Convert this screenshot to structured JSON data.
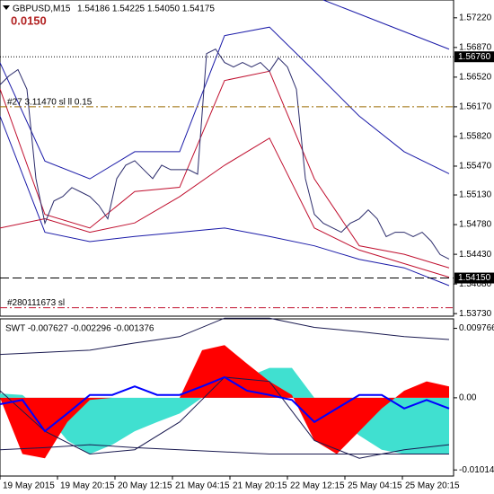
{
  "chart_data": [
    {
      "type": "line",
      "title": "GBPUSD,M15",
      "subtitle": "1.54186 1.54225 1.54050 1.54175",
      "annotation": "0.0150",
      "xlim": [
        0,
        505
      ],
      "xticks": [
        {
          "value": 0,
          "label": "19 May 2015"
        },
        {
          "value": 64,
          "label": "19 May 20:15"
        },
        {
          "value": 128,
          "label": "20 May 12:15"
        },
        {
          "value": 192,
          "label": "21 May 04:15"
        },
        {
          "value": 256,
          "label": "21 May 20:15"
        },
        {
          "value": 320,
          "label": "22 May 12:15"
        },
        {
          "value": 384,
          "label": "25 May 04:15"
        },
        {
          "value": 448,
          "label": "25 May 20:15"
        }
      ],
      "ylim": [
        1.537,
        1.5743
      ],
      "yticks": [
        {
          "value": 1.5722,
          "label": "1.57220"
        },
        {
          "value": 1.5687,
          "label": "1.56870"
        },
        {
          "value": 1.5652,
          "label": "1.56520"
        },
        {
          "value": 1.5617,
          "label": "1.56170"
        },
        {
          "value": 1.5582,
          "label": "1.55820"
        },
        {
          "value": 1.5547,
          "label": "1.55470"
        },
        {
          "value": 1.5513,
          "label": "1.55130"
        },
        {
          "value": 1.5478,
          "label": "1.54780"
        },
        {
          "value": 1.5443,
          "label": "1.54430"
        },
        {
          "value": 1.5408,
          "label": "1.54080"
        },
        {
          "value": 1.5373,
          "label": "1.53730"
        }
      ],
      "levels": [
        {
          "value": 1.5676,
          "label": "1.56760",
          "color": "#000000",
          "style": "dot"
        },
        {
          "value": 1.5415,
          "label": "1.54150",
          "color": "#000000",
          "style": "dash"
        },
        {
          "value": 1.5617,
          "text": "#27 3.11470 sl ll 0.15",
          "color": "#9a6a00",
          "style": "dashdot"
        },
        {
          "value": 1.538,
          "text": "#280111673 sl",
          "color": "#c0102f",
          "style": "dashdot"
        }
      ],
      "series": [
        {
          "color": "#1a1aa8",
          "x": [
            360,
            430,
            500
          ],
          "values": [
            1.5743,
            1.5714,
            1.5685
          ]
        },
        {
          "color": "#1a1aa8",
          "x": [
            0,
            50,
            100,
            150,
            200,
            250,
            300,
            350,
            400,
            450,
            500
          ],
          "values": [
            1.5669,
            1.5553,
            1.5532,
            1.5564,
            1.5564,
            1.5701,
            1.5711,
            1.5659,
            1.5606,
            1.5564,
            1.5538
          ]
        },
        {
          "color": "#1a1aa8",
          "x": [
            0,
            50,
            100,
            150,
            200,
            250,
            300,
            350,
            400,
            450,
            500
          ],
          "values": [
            1.5606,
            1.5469,
            1.5458,
            1.5464,
            1.5469,
            1.5474,
            1.5464,
            1.5453,
            1.5437,
            1.5427,
            1.5406
          ]
        },
        {
          "color": "#c0102f",
          "x": [
            0,
            50,
            100,
            150,
            200,
            250,
            300,
            350,
            400,
            450,
            500
          ],
          "values": [
            1.5638,
            1.549,
            1.5474,
            1.5517,
            1.5522,
            1.5648,
            1.5659,
            1.5532,
            1.5453,
            1.5443,
            1.5427
          ]
        },
        {
          "color": "#c0102f",
          "x": [
            0,
            50,
            100,
            150,
            200,
            250,
            300,
            350,
            400,
            450,
            500
          ],
          "values": [
            1.5474,
            1.5485,
            1.5469,
            1.548,
            1.5511,
            1.5548,
            1.558,
            1.5474,
            1.5448,
            1.5432,
            1.5416
          ]
        },
        {
          "color": "#2b2b6b",
          "x": [
            0,
            10,
            20,
            30,
            40,
            50,
            60,
            70,
            80,
            90,
            100,
            110,
            120,
            130,
            140,
            150,
            160,
            170,
            180,
            190,
            200,
            210,
            220,
            230,
            240,
            250,
            260,
            270,
            280,
            290,
            300,
            310,
            320,
            330,
            340,
            350,
            360,
            370,
            380,
            390,
            400,
            410,
            420,
            430,
            440,
            450,
            460,
            470,
            480,
            490,
            500
          ],
          "values": [
            1.5643,
            1.56535,
            1.56609,
            1.56377,
            1.55323,
            1.54796,
            1.55059,
            1.55112,
            1.55217,
            1.55165,
            1.55112,
            1.55007,
            1.54848,
            1.55323,
            1.55481,
            1.55534,
            1.55428,
            1.55323,
            1.55481,
            1.55428,
            1.55428,
            1.55428,
            1.55375,
            1.56798,
            1.56851,
            1.56693,
            1.5664,
            1.56693,
            1.5664,
            1.56693,
            1.56588,
            1.56746,
            1.5664,
            1.56377,
            1.55323,
            1.54901,
            1.54796,
            1.54743,
            1.5469,
            1.54796,
            1.54848,
            1.54954,
            1.54848,
            1.54638,
            1.5469,
            1.5469,
            1.54638,
            1.5469,
            1.54585,
            1.54427,
            1.54374
          ]
        }
      ]
    },
    {
      "type": "area",
      "title": "SWT -0.007627 -0.002296 -0.001376",
      "xlim": [
        0,
        505
      ],
      "ylim": [
        -0.011,
        0.0111
      ],
      "yticks": [
        0.009766,
        {
          "value": 0,
          "label": "0.00"
        },
        -0.010141
      ],
      "series": [
        {
          "color": "#40e0d0",
          "fill": true,
          "x": [
            0,
            25,
            50,
            75,
            100,
            125,
            150,
            175,
            200,
            225,
            250,
            275,
            300,
            325,
            350,
            375,
            400,
            425,
            450,
            475,
            500
          ],
          "values": [
            0.0006,
            0.0004,
            -0.0022,
            -0.006,
            -0.0079,
            -0.0066,
            -0.0047,
            -0.0034,
            -0.0022,
            0,
            0.001,
            0.0029,
            0.0042,
            0.0042,
            0,
            -0.0028,
            -0.0053,
            -0.0073,
            -0.0079,
            -0.0079,
            -0.0079
          ]
        },
        {
          "color": "#ff0000",
          "fill": true,
          "x": [
            0,
            25,
            50,
            75,
            100,
            125,
            150,
            175,
            200,
            225,
            250,
            275,
            300,
            325,
            350,
            375,
            400,
            425,
            450,
            475,
            500
          ],
          "values": [
            0,
            -0.0079,
            -0.0085,
            -0.0034,
            -0.0003,
            0,
            0,
            0,
            0,
            0.0067,
            0.0074,
            0.0048,
            0.0023,
            0.0004,
            -0.006,
            -0.0079,
            -0.0047,
            -0.0015,
            0.001,
            0.0023,
            0.0016
          ]
        },
        {
          "color": "#1a1a50",
          "fill": false,
          "x": [
            0,
            50,
            100,
            150,
            200,
            250,
            300,
            350,
            400,
            450,
            500
          ],
          "values": [
            0.0061,
            0.0064,
            0.0067,
            0.0077,
            0.0086,
            0.0112,
            0.0112,
            0.0099,
            0.0093,
            0.0086,
            0.0082
          ]
        },
        {
          "color": "#1a1a50",
          "fill": false,
          "x": [
            0,
            50,
            100,
            150,
            200,
            250,
            300,
            350,
            400,
            450,
            500
          ],
          "values": [
            -0.0073,
            -0.007,
            -0.0066,
            -0.007,
            -0.0073,
            -0.0076,
            -0.0079,
            -0.0079,
            -0.0079,
            -0.0079,
            -0.0079
          ]
        },
        {
          "color": "#1a1a50",
          "fill": false,
          "x": [
            0,
            50,
            100,
            150,
            200,
            250,
            300,
            350,
            400,
            450,
            500
          ],
          "values": [
            0.001,
            -0.0047,
            -0.0079,
            -0.0073,
            -0.0034,
            0.0029,
            0.0023,
            -0.006,
            -0.0085,
            -0.0073,
            -0.0066
          ]
        },
        {
          "color": "#0000ff",
          "fill": false,
          "x": [
            0,
            25,
            50,
            75,
            100,
            125,
            150,
            175,
            200,
            225,
            250,
            275,
            300,
            325,
            350,
            375,
            400,
            425,
            450,
            475,
            500
          ],
          "values": [
            -0.0009,
            -0.0003,
            -0.0047,
            -0.0022,
            0.0004,
            0.0004,
            0.0016,
            0.0004,
            0.0004,
            0.0016,
            0.0029,
            0.001,
            0.0004,
            -0.0003,
            -0.0034,
            -0.0015,
            0.0004,
            0.0004,
            -0.0015,
            -0.0003,
            -0.0015
          ]
        }
      ]
    }
  ]
}
